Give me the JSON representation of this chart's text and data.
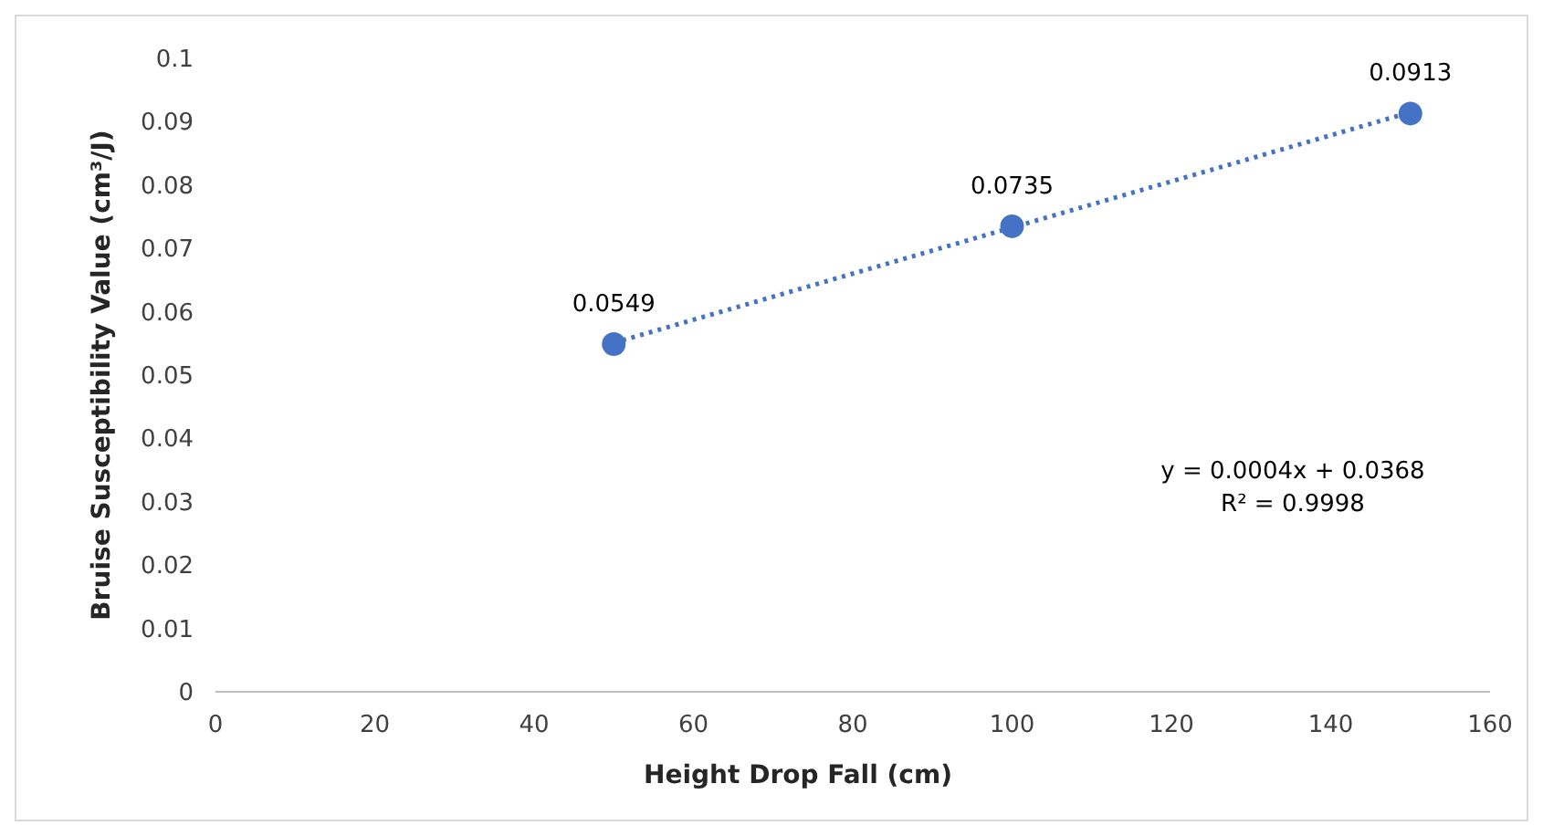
{
  "chart_data": {
    "type": "scatter",
    "xlabel": "Height Drop Fall (cm)",
    "ylabel": "Bruise Susceptibility Value (cm³/J)",
    "xlim": [
      0,
      160
    ],
    "xticks": [
      0,
      20,
      40,
      60,
      80,
      100,
      120,
      140,
      160
    ],
    "ylim": [
      0,
      0.1
    ],
    "yticks": [
      0,
      0.01,
      0.02,
      0.03,
      0.04,
      0.05,
      0.06,
      0.07,
      0.08,
      0.09,
      0.1
    ],
    "series": [
      {
        "color": "#4472c4",
        "marker": "circle",
        "x": [
          50,
          100,
          150
        ],
        "values": [
          0.0549,
          0.0735,
          0.0913
        ],
        "value_labels": [
          "0.0549",
          "0.0735",
          "0.0913"
        ]
      },
      {
        "type": "line",
        "color": "#4472c4",
        "marker": "none",
        "line_style": "dotted",
        "x": [
          50,
          150
        ],
        "values": [
          0.0551,
          0.0915
        ]
      }
    ],
    "annotations": [
      "y = 0.0004x + 0.0368",
      "R² = 0.9998"
    ]
  }
}
